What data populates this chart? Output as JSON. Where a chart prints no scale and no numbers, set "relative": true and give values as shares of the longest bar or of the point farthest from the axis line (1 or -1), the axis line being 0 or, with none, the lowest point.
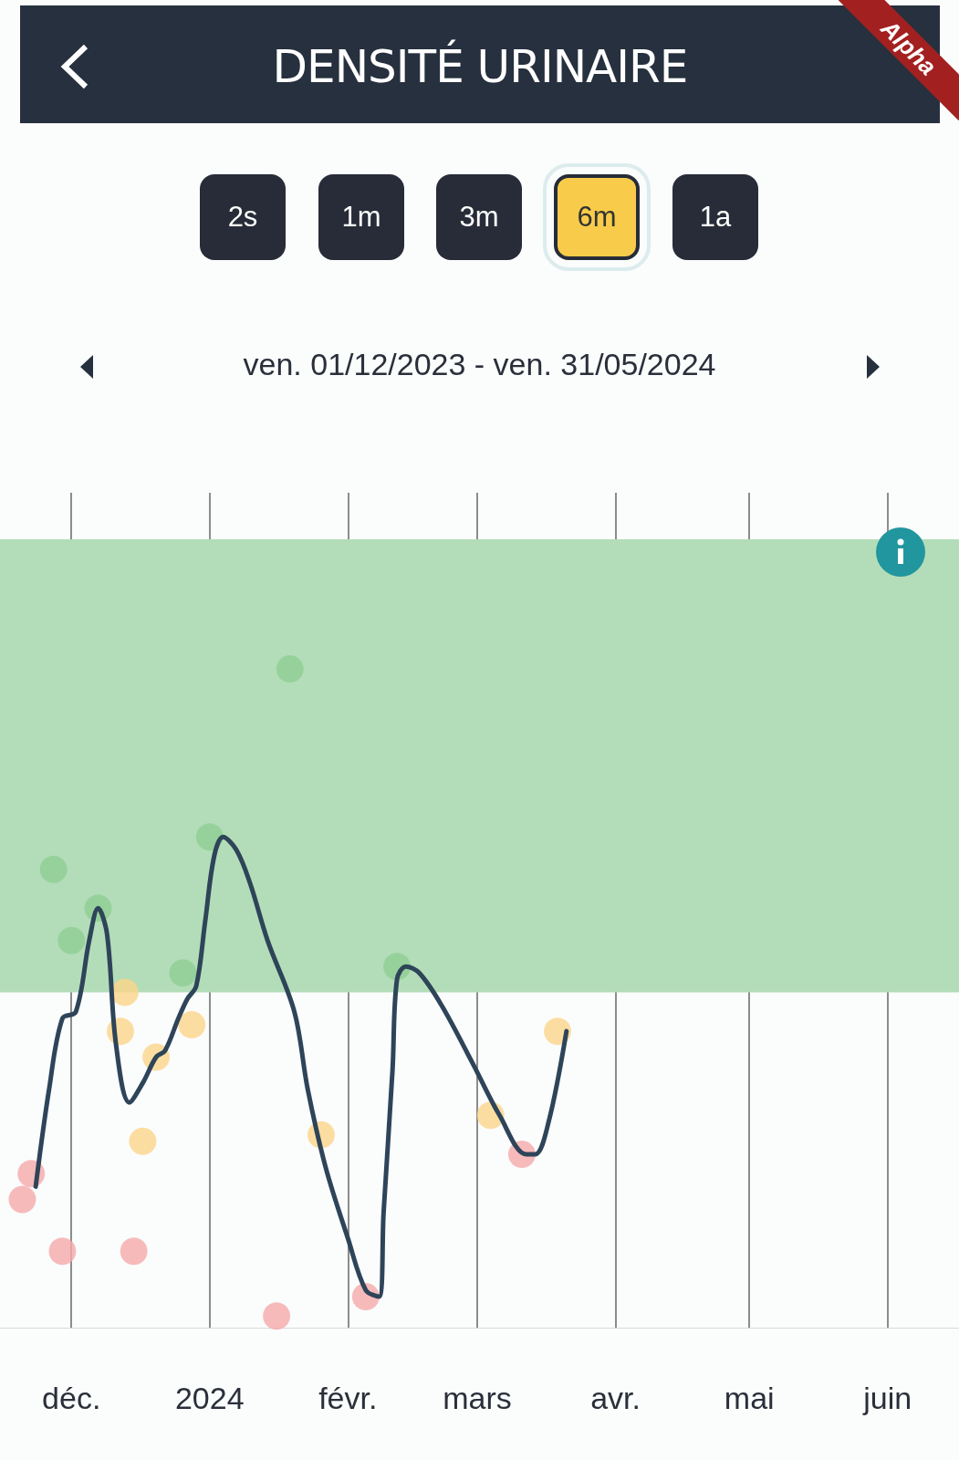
{
  "chart_data": {
    "type": "scatter",
    "title": "DENSITÉ URINAIRE",
    "subtitle": "ven. 01/12/2023 - ven. 31/05/2024",
    "annotations": [
      "2s",
      "1m",
      "3m",
      "6m",
      "1a",
      "Alpha"
    ],
    "relative": true,
    "xlim": [
      "2023-11-15",
      "2024-06-17"
    ],
    "xticks": [
      {
        "value": "2023-12-01",
        "label": "déc."
      },
      {
        "value": "2024-01-01",
        "label": "2024"
      },
      {
        "value": "2024-02-01",
        "label": "févr."
      },
      {
        "value": "2024-03-01",
        "label": "mars"
      },
      {
        "value": "2024-04-01",
        "label": "avr."
      },
      {
        "value": "2024-05-01",
        "label": "mai"
      },
      {
        "value": "2024-06-01",
        "label": "juin"
      }
    ],
    "grid": "x",
    "marker": "circle",
    "bands": [
      {
        "axis": "y",
        "from": 0.5,
        "to": 1.2,
        "color": "#b3ddb8"
      }
    ],
    "series": [
      {
        "color": "#f6a9a9",
        "x": [
          "2023-11-22",
          "2023-11-20",
          "2023-11-29",
          "2023-12-15",
          "2024-01-16",
          "2024-02-05",
          "2024-03-11"
        ],
        "values": [
          0.22,
          0.18,
          0.1,
          0.1,
          0,
          0.03,
          0.25
        ]
      },
      {
        "color": "#8fce93",
        "x": [
          "2023-11-27",
          "2023-12-07",
          "2023-12-01",
          "2023-12-26",
          "2024-01-01",
          "2024-01-19",
          "2024-02-12"
        ],
        "values": [
          0.69,
          0.63,
          0.58,
          0.53,
          0.74,
          1.0,
          0.54
        ]
      },
      {
        "color": "#fcd58a",
        "x": [
          "2023-12-13",
          "2023-12-12",
          "2023-12-20",
          "2023-12-28",
          "2023-12-17",
          "2024-01-26",
          "2024-03-04",
          "2024-03-19"
        ],
        "values": [
          0.5,
          0.44,
          0.4,
          0.45,
          0.27,
          0.28,
          0.31,
          0.44
        ]
      },
      {
        "type": "line",
        "marker": "none",
        "color": "#2e4459",
        "x": [
          "2023-11-23",
          "2023-11-26",
          "2023-11-29",
          "2023-12-02",
          "2023-12-05",
          "2023-12-07",
          "2023-12-09",
          "2023-12-11",
          "2023-12-14",
          "2023-12-17",
          "2023-12-20",
          "2023-12-22",
          "2023-12-25",
          "2023-12-27",
          "2023-12-29",
          "2023-12-31",
          "2024-01-02",
          "2024-01-04",
          "2024-01-07",
          "2024-01-10",
          "2024-01-14",
          "2024-01-20",
          "2024-01-23",
          "2024-01-27",
          "2024-02-01",
          "2024-02-05",
          "2024-02-08",
          "2024-02-09",
          "2024-02-11",
          "2024-02-12",
          "2024-02-14",
          "2024-02-17",
          "2024-02-22",
          "2024-02-29",
          "2024-03-06",
          "2024-03-12",
          "2024-03-14",
          "2024-03-17",
          "2024-03-21"
        ],
        "values": [
          0.2,
          0.35,
          0.46,
          0.47,
          0.58,
          0.63,
          0.59,
          0.42,
          0.33,
          0.36,
          0.4,
          0.41,
          0.46,
          0.49,
          0.51,
          0.61,
          0.71,
          0.74,
          0.72,
          0.67,
          0.58,
          0.47,
          0.35,
          0.23,
          0.12,
          0.04,
          0.03,
          0.16,
          0.38,
          0.52,
          0.54,
          0.53,
          0.48,
          0.39,
          0.31,
          0.25,
          0.25,
          0.3,
          0.44
        ]
      }
    ]
  }
}
